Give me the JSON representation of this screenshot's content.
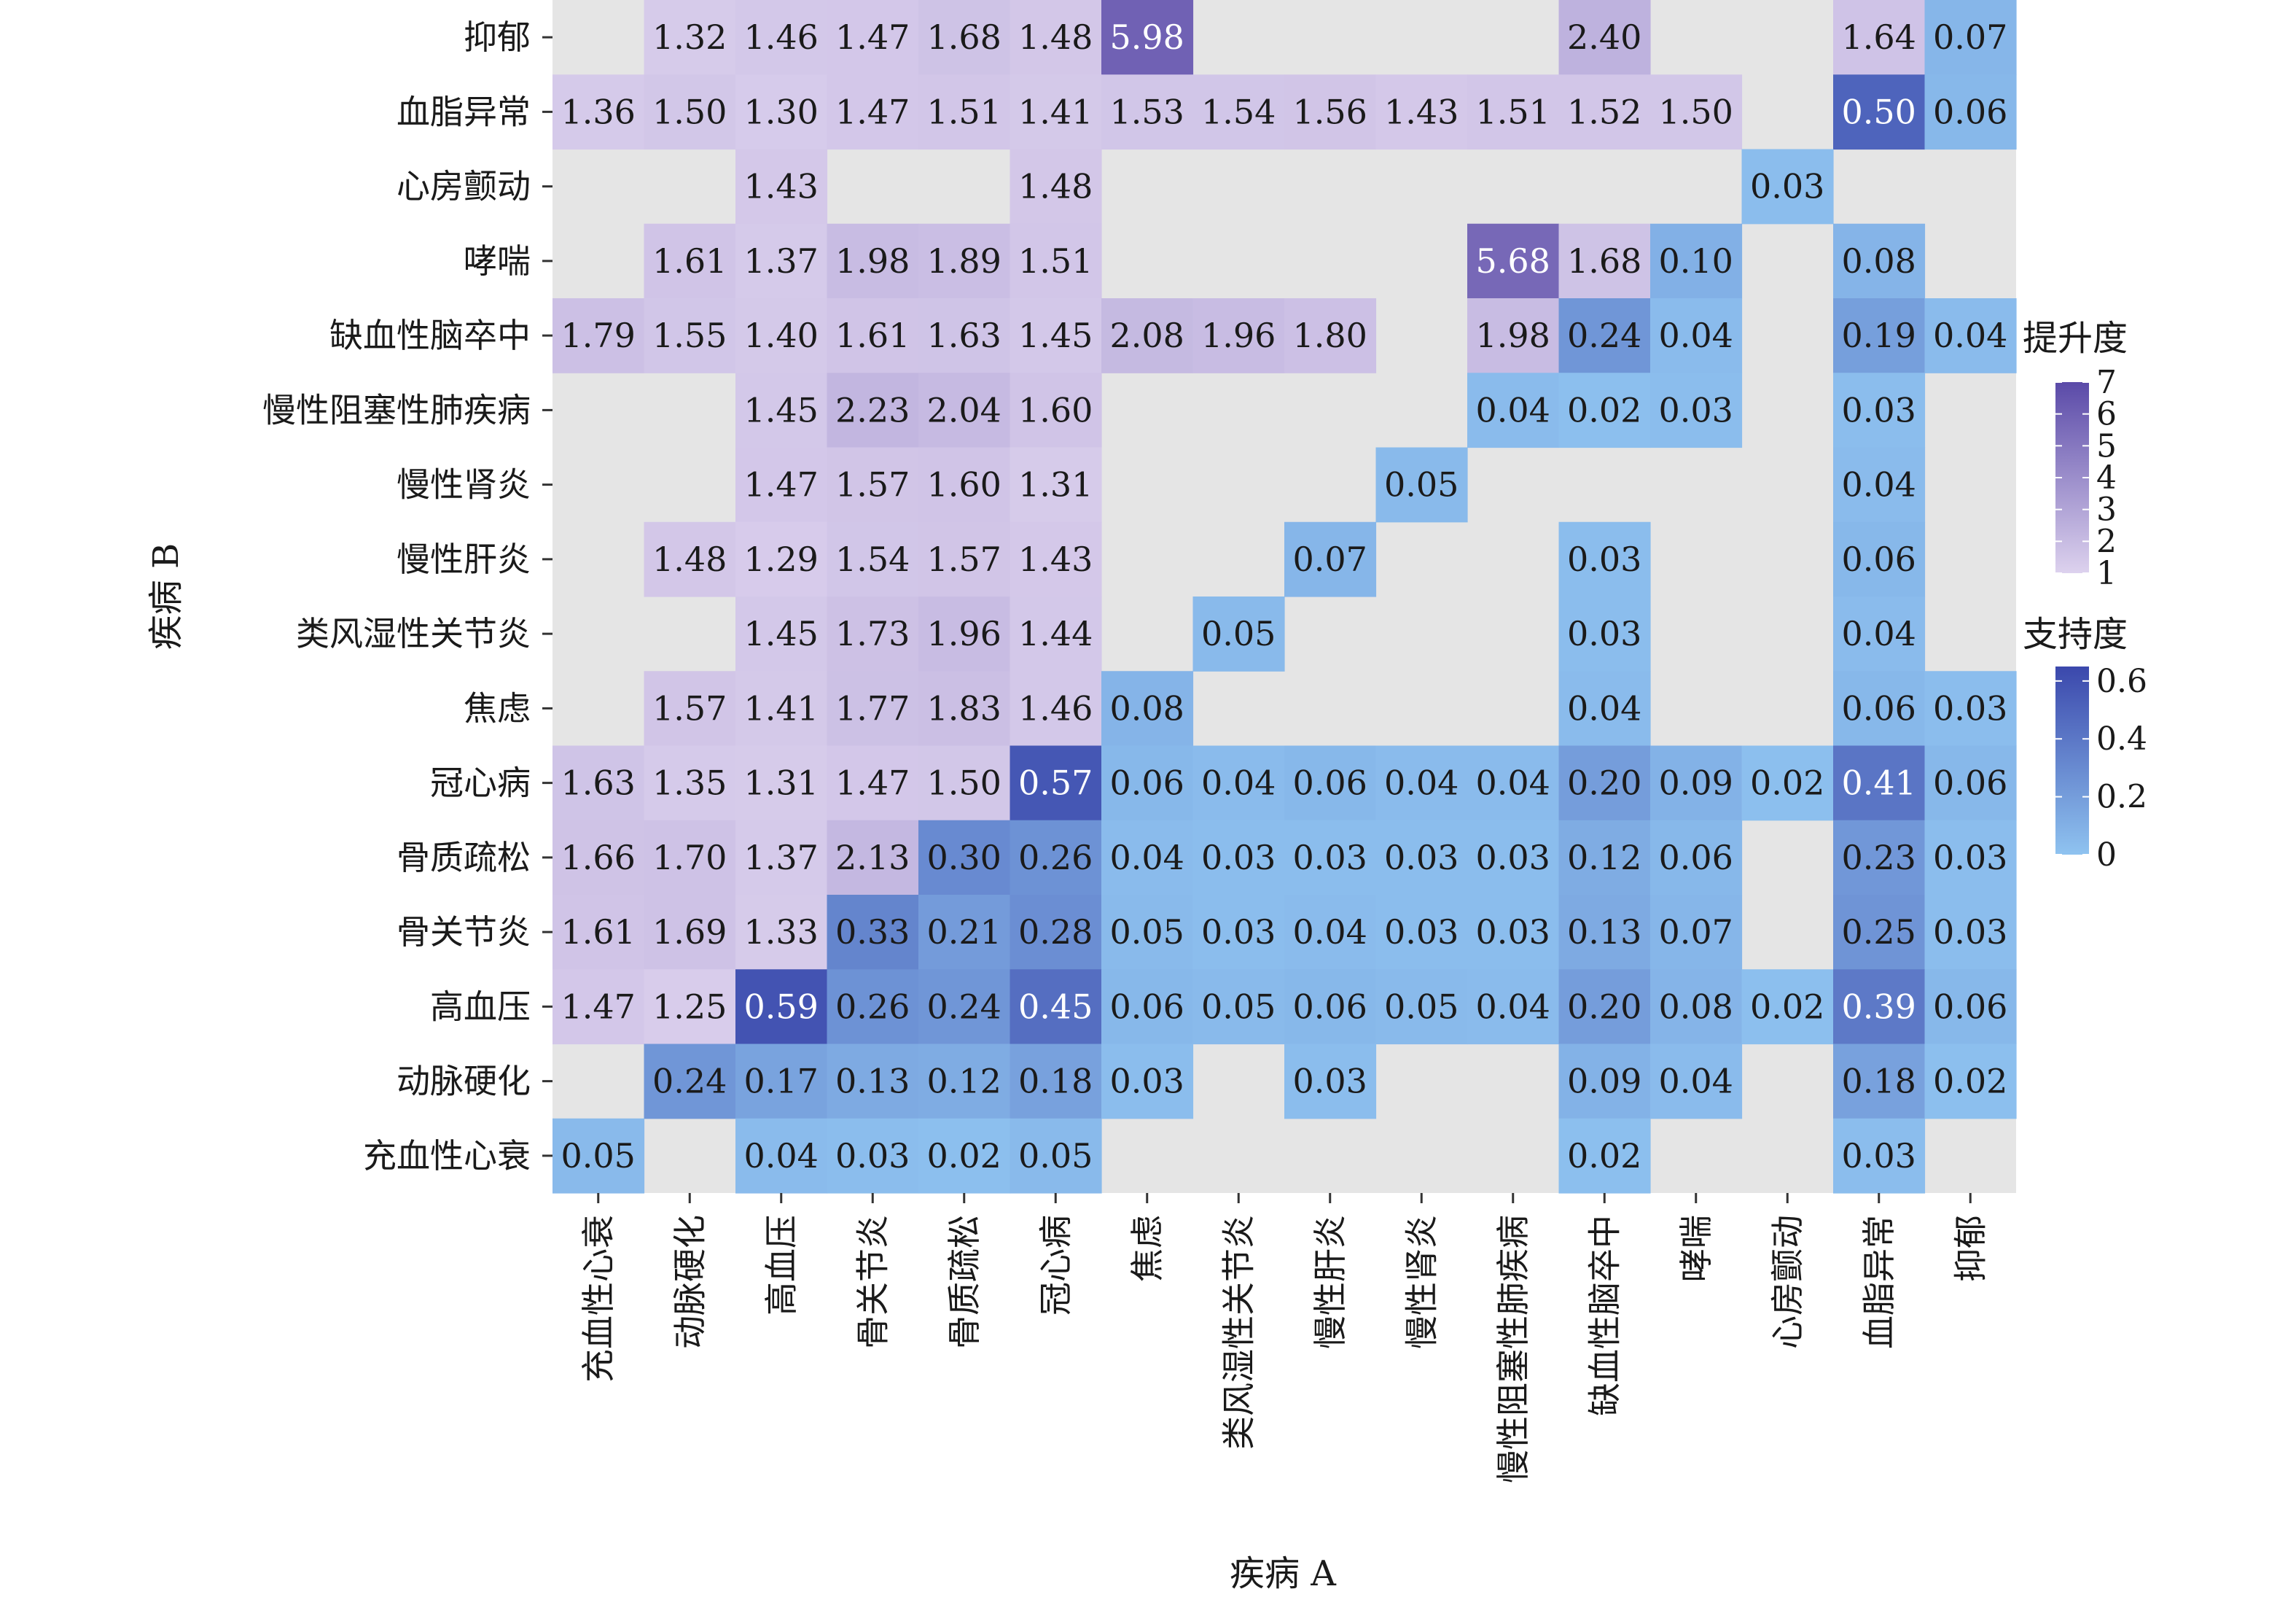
{
  "chart_data": {
    "type": "heatmap",
    "xlabel": "疾病 A",
    "ylabel": "疾病 B",
    "x_categories": [
      "充血性心衰",
      "动脉硬化",
      "高血压",
      "骨关节炎",
      "骨质疏松",
      "冠心病",
      "焦虑",
      "类风湿性关节炎",
      "慢性肝炎",
      "慢性肾炎",
      "慢性阻塞性肺疾病",
      "缺血性脑卒中",
      "哮喘",
      "心房颤动",
      "血脂异常",
      "抑郁"
    ],
    "y_categories": [
      "抑郁",
      "血脂异常",
      "心房颤动",
      "哮喘",
      "缺血性脑卒中",
      "慢性阻塞性肺疾病",
      "慢性肾炎",
      "慢性肝炎",
      "类风湿性关节炎",
      "焦虑",
      "冠心病",
      "骨质疏松",
      "骨关节炎",
      "高血压",
      "动脉硬化",
      "充血性心衰"
    ],
    "cells": [
      {
        "y": "抑郁",
        "x": "动脉硬化",
        "metric": "lift",
        "value": 1.32
      },
      {
        "y": "抑郁",
        "x": "高血压",
        "metric": "lift",
        "value": 1.46
      },
      {
        "y": "抑郁",
        "x": "骨关节炎",
        "metric": "lift",
        "value": 1.47
      },
      {
        "y": "抑郁",
        "x": "骨质疏松",
        "metric": "lift",
        "value": 1.68
      },
      {
        "y": "抑郁",
        "x": "冠心病",
        "metric": "lift",
        "value": 1.48
      },
      {
        "y": "抑郁",
        "x": "焦虑",
        "metric": "lift",
        "value": 5.98
      },
      {
        "y": "抑郁",
        "x": "缺血性脑卒中",
        "metric": "lift",
        "value": 2.4
      },
      {
        "y": "抑郁",
        "x": "血脂异常",
        "metric": "lift",
        "value": 1.64
      },
      {
        "y": "抑郁",
        "x": "抑郁",
        "metric": "support",
        "value": 0.07
      },
      {
        "y": "血脂异常",
        "x": "充血性心衰",
        "metric": "lift",
        "value": 1.36
      },
      {
        "y": "血脂异常",
        "x": "动脉硬化",
        "metric": "lift",
        "value": 1.5
      },
      {
        "y": "血脂异常",
        "x": "高血压",
        "metric": "lift",
        "value": 1.3
      },
      {
        "y": "血脂异常",
        "x": "骨关节炎",
        "metric": "lift",
        "value": 1.47
      },
      {
        "y": "血脂异常",
        "x": "骨质疏松",
        "metric": "lift",
        "value": 1.51
      },
      {
        "y": "血脂异常",
        "x": "冠心病",
        "metric": "lift",
        "value": 1.41
      },
      {
        "y": "血脂异常",
        "x": "焦虑",
        "metric": "lift",
        "value": 1.53
      },
      {
        "y": "血脂异常",
        "x": "类风湿性关节炎",
        "metric": "lift",
        "value": 1.54
      },
      {
        "y": "血脂异常",
        "x": "慢性肝炎",
        "metric": "lift",
        "value": 1.56
      },
      {
        "y": "血脂异常",
        "x": "慢性肾炎",
        "metric": "lift",
        "value": 1.43
      },
      {
        "y": "血脂异常",
        "x": "慢性阻塞性肺疾病",
        "metric": "lift",
        "value": 1.51
      },
      {
        "y": "血脂异常",
        "x": "缺血性脑卒中",
        "metric": "lift",
        "value": 1.52
      },
      {
        "y": "血脂异常",
        "x": "哮喘",
        "metric": "lift",
        "value": 1.5
      },
      {
        "y": "血脂异常",
        "x": "血脂异常",
        "metric": "support",
        "value": 0.5
      },
      {
        "y": "血脂异常",
        "x": "抑郁",
        "metric": "support",
        "value": 0.06
      },
      {
        "y": "心房颤动",
        "x": "高血压",
        "metric": "lift",
        "value": 1.43
      },
      {
        "y": "心房颤动",
        "x": "冠心病",
        "metric": "lift",
        "value": 1.48
      },
      {
        "y": "心房颤动",
        "x": "心房颤动",
        "metric": "support",
        "value": 0.03
      },
      {
        "y": "哮喘",
        "x": "动脉硬化",
        "metric": "lift",
        "value": 1.61
      },
      {
        "y": "哮喘",
        "x": "高血压",
        "metric": "lift",
        "value": 1.37
      },
      {
        "y": "哮喘",
        "x": "骨关节炎",
        "metric": "lift",
        "value": 1.98
      },
      {
        "y": "哮喘",
        "x": "骨质疏松",
        "metric": "lift",
        "value": 1.89
      },
      {
        "y": "哮喘",
        "x": "冠心病",
        "metric": "lift",
        "value": 1.51
      },
      {
        "y": "哮喘",
        "x": "慢性阻塞性肺疾病",
        "metric": "lift",
        "value": 5.68
      },
      {
        "y": "哮喘",
        "x": "缺血性脑卒中",
        "metric": "lift",
        "value": 1.68
      },
      {
        "y": "哮喘",
        "x": "哮喘",
        "metric": "support",
        "value": 0.1
      },
      {
        "y": "哮喘",
        "x": "血脂异常",
        "metric": "support",
        "value": 0.08
      },
      {
        "y": "缺血性脑卒中",
        "x": "充血性心衰",
        "metric": "lift",
        "value": 1.79
      },
      {
        "y": "缺血性脑卒中",
        "x": "动脉硬化",
        "metric": "lift",
        "value": 1.55
      },
      {
        "y": "缺血性脑卒中",
        "x": "高血压",
        "metric": "lift",
        "value": 1.4
      },
      {
        "y": "缺血性脑卒中",
        "x": "骨关节炎",
        "metric": "lift",
        "value": 1.61
      },
      {
        "y": "缺血性脑卒中",
        "x": "骨质疏松",
        "metric": "lift",
        "value": 1.63
      },
      {
        "y": "缺血性脑卒中",
        "x": "冠心病",
        "metric": "lift",
        "value": 1.45
      },
      {
        "y": "缺血性脑卒中",
        "x": "焦虑",
        "metric": "lift",
        "value": 2.08
      },
      {
        "y": "缺血性脑卒中",
        "x": "类风湿性关节炎",
        "metric": "lift",
        "value": 1.96
      },
      {
        "y": "缺血性脑卒中",
        "x": "慢性肝炎",
        "metric": "lift",
        "value": 1.8
      },
      {
        "y": "缺血性脑卒中",
        "x": "慢性阻塞性肺疾病",
        "metric": "lift",
        "value": 1.98
      },
      {
        "y": "缺血性脑卒中",
        "x": "缺血性脑卒中",
        "metric": "support",
        "value": 0.24
      },
      {
        "y": "缺血性脑卒中",
        "x": "哮喘",
        "metric": "support",
        "value": 0.04
      },
      {
        "y": "缺血性脑卒中",
        "x": "血脂异常",
        "metric": "support",
        "value": 0.19
      },
      {
        "y": "缺血性脑卒中",
        "x": "抑郁",
        "metric": "support",
        "value": 0.04
      },
      {
        "y": "慢性阻塞性肺疾病",
        "x": "高血压",
        "metric": "lift",
        "value": 1.45
      },
      {
        "y": "慢性阻塞性肺疾病",
        "x": "骨关节炎",
        "metric": "lift",
        "value": 2.23
      },
      {
        "y": "慢性阻塞性肺疾病",
        "x": "骨质疏松",
        "metric": "lift",
        "value": 2.04
      },
      {
        "y": "慢性阻塞性肺疾病",
        "x": "冠心病",
        "metric": "lift",
        "value": 1.6
      },
      {
        "y": "慢性阻塞性肺疾病",
        "x": "慢性阻塞性肺疾病",
        "metric": "support",
        "value": 0.04
      },
      {
        "y": "慢性阻塞性肺疾病",
        "x": "缺血性脑卒中",
        "metric": "support",
        "value": 0.02
      },
      {
        "y": "慢性阻塞性肺疾病",
        "x": "哮喘",
        "metric": "support",
        "value": 0.03
      },
      {
        "y": "慢性阻塞性肺疾病",
        "x": "血脂异常",
        "metric": "support",
        "value": 0.03
      },
      {
        "y": "慢性肾炎",
        "x": "高血压",
        "metric": "lift",
        "value": 1.47
      },
      {
        "y": "慢性肾炎",
        "x": "骨关节炎",
        "metric": "lift",
        "value": 1.57
      },
      {
        "y": "慢性肾炎",
        "x": "骨质疏松",
        "metric": "lift",
        "value": 1.6
      },
      {
        "y": "慢性肾炎",
        "x": "冠心病",
        "metric": "lift",
        "value": 1.31
      },
      {
        "y": "慢性肾炎",
        "x": "慢性肾炎",
        "metric": "support",
        "value": 0.05
      },
      {
        "y": "慢性肾炎",
        "x": "血脂异常",
        "metric": "support",
        "value": 0.04
      },
      {
        "y": "慢性肝炎",
        "x": "动脉硬化",
        "metric": "lift",
        "value": 1.48
      },
      {
        "y": "慢性肝炎",
        "x": "高血压",
        "metric": "lift",
        "value": 1.29
      },
      {
        "y": "慢性肝炎",
        "x": "骨关节炎",
        "metric": "lift",
        "value": 1.54
      },
      {
        "y": "慢性肝炎",
        "x": "骨质疏松",
        "metric": "lift",
        "value": 1.57
      },
      {
        "y": "慢性肝炎",
        "x": "冠心病",
        "metric": "lift",
        "value": 1.43
      },
      {
        "y": "慢性肝炎",
        "x": "慢性肝炎",
        "metric": "support",
        "value": 0.07
      },
      {
        "y": "慢性肝炎",
        "x": "缺血性脑卒中",
        "metric": "support",
        "value": 0.03
      },
      {
        "y": "慢性肝炎",
        "x": "血脂异常",
        "metric": "support",
        "value": 0.06
      },
      {
        "y": "类风湿性关节炎",
        "x": "高血压",
        "metric": "lift",
        "value": 1.45
      },
      {
        "y": "类风湿性关节炎",
        "x": "骨关节炎",
        "metric": "lift",
        "value": 1.73
      },
      {
        "y": "类风湿性关节炎",
        "x": "骨质疏松",
        "metric": "lift",
        "value": 1.96
      },
      {
        "y": "类风湿性关节炎",
        "x": "冠心病",
        "metric": "lift",
        "value": 1.44
      },
      {
        "y": "类风湿性关节炎",
        "x": "类风湿性关节炎",
        "metric": "support",
        "value": 0.05
      },
      {
        "y": "类风湿性关节炎",
        "x": "缺血性脑卒中",
        "metric": "support",
        "value": 0.03
      },
      {
        "y": "类风湿性关节炎",
        "x": "血脂异常",
        "metric": "support",
        "value": 0.04
      },
      {
        "y": "焦虑",
        "x": "动脉硬化",
        "metric": "lift",
        "value": 1.57
      },
      {
        "y": "焦虑",
        "x": "高血压",
        "metric": "lift",
        "value": 1.41
      },
      {
        "y": "焦虑",
        "x": "骨关节炎",
        "metric": "lift",
        "value": 1.77
      },
      {
        "y": "焦虑",
        "x": "骨质疏松",
        "metric": "lift",
        "value": 1.83
      },
      {
        "y": "焦虑",
        "x": "冠心病",
        "metric": "lift",
        "value": 1.46
      },
      {
        "y": "焦虑",
        "x": "焦虑",
        "metric": "support",
        "value": 0.08
      },
      {
        "y": "焦虑",
        "x": "缺血性脑卒中",
        "metric": "support",
        "value": 0.04
      },
      {
        "y": "焦虑",
        "x": "血脂异常",
        "metric": "support",
        "value": 0.06
      },
      {
        "y": "焦虑",
        "x": "抑郁",
        "metric": "support",
        "value": 0.03
      },
      {
        "y": "冠心病",
        "x": "充血性心衰",
        "metric": "lift",
        "value": 1.63
      },
      {
        "y": "冠心病",
        "x": "动脉硬化",
        "metric": "lift",
        "value": 1.35
      },
      {
        "y": "冠心病",
        "x": "高血压",
        "metric": "lift",
        "value": 1.31
      },
      {
        "y": "冠心病",
        "x": "骨关节炎",
        "metric": "lift",
        "value": 1.47
      },
      {
        "y": "冠心病",
        "x": "骨质疏松",
        "metric": "lift",
        "value": 1.5
      },
      {
        "y": "冠心病",
        "x": "冠心病",
        "metric": "support",
        "value": 0.57
      },
      {
        "y": "冠心病",
        "x": "焦虑",
        "metric": "support",
        "value": 0.06
      },
      {
        "y": "冠心病",
        "x": "类风湿性关节炎",
        "metric": "support",
        "value": 0.04
      },
      {
        "y": "冠心病",
        "x": "慢性肝炎",
        "metric": "support",
        "value": 0.06
      },
      {
        "y": "冠心病",
        "x": "慢性肾炎",
        "metric": "support",
        "value": 0.04
      },
      {
        "y": "冠心病",
        "x": "慢性阻塞性肺疾病",
        "metric": "support",
        "value": 0.04
      },
      {
        "y": "冠心病",
        "x": "缺血性脑卒中",
        "metric": "support",
        "value": 0.2
      },
      {
        "y": "冠心病",
        "x": "哮喘",
        "metric": "support",
        "value": 0.09
      },
      {
        "y": "冠心病",
        "x": "心房颤动",
        "metric": "support",
        "value": 0.02
      },
      {
        "y": "冠心病",
        "x": "血脂异常",
        "metric": "support",
        "value": 0.41
      },
      {
        "y": "冠心病",
        "x": "抑郁",
        "metric": "support",
        "value": 0.06
      },
      {
        "y": "骨质疏松",
        "x": "充血性心衰",
        "metric": "lift",
        "value": 1.66
      },
      {
        "y": "骨质疏松",
        "x": "动脉硬化",
        "metric": "lift",
        "value": 1.7
      },
      {
        "y": "骨质疏松",
        "x": "高血压",
        "metric": "lift",
        "value": 1.37
      },
      {
        "y": "骨质疏松",
        "x": "骨关节炎",
        "metric": "lift",
        "value": 2.13
      },
      {
        "y": "骨质疏松",
        "x": "骨质疏松",
        "metric": "support",
        "value": 0.3
      },
      {
        "y": "骨质疏松",
        "x": "冠心病",
        "metric": "support",
        "value": 0.26
      },
      {
        "y": "骨质疏松",
        "x": "焦虑",
        "metric": "support",
        "value": 0.04
      },
      {
        "y": "骨质疏松",
        "x": "类风湿性关节炎",
        "metric": "support",
        "value": 0.03
      },
      {
        "y": "骨质疏松",
        "x": "慢性肝炎",
        "metric": "support",
        "value": 0.03
      },
      {
        "y": "骨质疏松",
        "x": "慢性肾炎",
        "metric": "support",
        "value": 0.03
      },
      {
        "y": "骨质疏松",
        "x": "慢性阻塞性肺疾病",
        "metric": "support",
        "value": 0.03
      },
      {
        "y": "骨质疏松",
        "x": "缺血性脑卒中",
        "metric": "support",
        "value": 0.12
      },
      {
        "y": "骨质疏松",
        "x": "哮喘",
        "metric": "support",
        "value": 0.06
      },
      {
        "y": "骨质疏松",
        "x": "血脂异常",
        "metric": "support",
        "value": 0.23
      },
      {
        "y": "骨质疏松",
        "x": "抑郁",
        "metric": "support",
        "value": 0.03
      },
      {
        "y": "骨关节炎",
        "x": "充血性心衰",
        "metric": "lift",
        "value": 1.61
      },
      {
        "y": "骨关节炎",
        "x": "动脉硬化",
        "metric": "lift",
        "value": 1.69
      },
      {
        "y": "骨关节炎",
        "x": "高血压",
        "metric": "lift",
        "value": 1.33
      },
      {
        "y": "骨关节炎",
        "x": "骨关节炎",
        "metric": "support",
        "value": 0.33
      },
      {
        "y": "骨关节炎",
        "x": "骨质疏松",
        "metric": "support",
        "value": 0.21
      },
      {
        "y": "骨关节炎",
        "x": "冠心病",
        "metric": "support",
        "value": 0.28
      },
      {
        "y": "骨关节炎",
        "x": "焦虑",
        "metric": "support",
        "value": 0.05
      },
      {
        "y": "骨关节炎",
        "x": "类风湿性关节炎",
        "metric": "support",
        "value": 0.03
      },
      {
        "y": "骨关节炎",
        "x": "慢性肝炎",
        "metric": "support",
        "value": 0.04
      },
      {
        "y": "骨关节炎",
        "x": "慢性肾炎",
        "metric": "support",
        "value": 0.03
      },
      {
        "y": "骨关节炎",
        "x": "慢性阻塞性肺疾病",
        "metric": "support",
        "value": 0.03
      },
      {
        "y": "骨关节炎",
        "x": "缺血性脑卒中",
        "metric": "support",
        "value": 0.13
      },
      {
        "y": "骨关节炎",
        "x": "哮喘",
        "metric": "support",
        "value": 0.07
      },
      {
        "y": "骨关节炎",
        "x": "血脂异常",
        "metric": "support",
        "value": 0.25
      },
      {
        "y": "骨关节炎",
        "x": "抑郁",
        "metric": "support",
        "value": 0.03
      },
      {
        "y": "高血压",
        "x": "充血性心衰",
        "metric": "lift",
        "value": 1.47
      },
      {
        "y": "高血压",
        "x": "动脉硬化",
        "metric": "lift",
        "value": 1.25
      },
      {
        "y": "高血压",
        "x": "高血压",
        "metric": "support",
        "value": 0.59
      },
      {
        "y": "高血压",
        "x": "骨关节炎",
        "metric": "support",
        "value": 0.26
      },
      {
        "y": "高血压",
        "x": "骨质疏松",
        "metric": "support",
        "value": 0.24
      },
      {
        "y": "高血压",
        "x": "冠心病",
        "metric": "support",
        "value": 0.45
      },
      {
        "y": "高血压",
        "x": "焦虑",
        "metric": "support",
        "value": 0.06
      },
      {
        "y": "高血压",
        "x": "类风湿性关节炎",
        "metric": "support",
        "value": 0.05
      },
      {
        "y": "高血压",
        "x": "慢性肝炎",
        "metric": "support",
        "value": 0.06
      },
      {
        "y": "高血压",
        "x": "慢性肾炎",
        "metric": "support",
        "value": 0.05
      },
      {
        "y": "高血压",
        "x": "慢性阻塞性肺疾病",
        "metric": "support",
        "value": 0.04
      },
      {
        "y": "高血压",
        "x": "缺血性脑卒中",
        "metric": "support",
        "value": 0.2
      },
      {
        "y": "高血压",
        "x": "哮喘",
        "metric": "support",
        "value": 0.08
      },
      {
        "y": "高血压",
        "x": "心房颤动",
        "metric": "support",
        "value": 0.02
      },
      {
        "y": "高血压",
        "x": "血脂异常",
        "metric": "support",
        "value": 0.39
      },
      {
        "y": "高血压",
        "x": "抑郁",
        "metric": "support",
        "value": 0.06
      },
      {
        "y": "动脉硬化",
        "x": "动脉硬化",
        "metric": "support",
        "value": 0.24
      },
      {
        "y": "动脉硬化",
        "x": "高血压",
        "metric": "support",
        "value": 0.17
      },
      {
        "y": "动脉硬化",
        "x": "骨关节炎",
        "metric": "support",
        "value": 0.13
      },
      {
        "y": "动脉硬化",
        "x": "骨质疏松",
        "metric": "support",
        "value": 0.12
      },
      {
        "y": "动脉硬化",
        "x": "冠心病",
        "metric": "support",
        "value": 0.18
      },
      {
        "y": "动脉硬化",
        "x": "焦虑",
        "metric": "support",
        "value": 0.03
      },
      {
        "y": "动脉硬化",
        "x": "慢性肝炎",
        "metric": "support",
        "value": 0.03
      },
      {
        "y": "动脉硬化",
        "x": "缺血性脑卒中",
        "metric": "support",
        "value": 0.09
      },
      {
        "y": "动脉硬化",
        "x": "哮喘",
        "metric": "support",
        "value": 0.04
      },
      {
        "y": "动脉硬化",
        "x": "血脂异常",
        "metric": "support",
        "value": 0.18
      },
      {
        "y": "动脉硬化",
        "x": "抑郁",
        "metric": "support",
        "value": 0.02
      },
      {
        "y": "充血性心衰",
        "x": "充血性心衰",
        "metric": "support",
        "value": 0.05
      },
      {
        "y": "充血性心衰",
        "x": "高血压",
        "metric": "support",
        "value": 0.04
      },
      {
        "y": "充血性心衰",
        "x": "骨关节炎",
        "metric": "support",
        "value": 0.03
      },
      {
        "y": "充血性心衰",
        "x": "骨质疏松",
        "metric": "support",
        "value": 0.02
      },
      {
        "y": "充血性心衰",
        "x": "冠心病",
        "metric": "support",
        "value": 0.05
      },
      {
        "y": "充血性心衰",
        "x": "缺血性脑卒中",
        "metric": "support",
        "value": 0.02
      },
      {
        "y": "充血性心衰",
        "x": "血脂异常",
        "metric": "support",
        "value": 0.03
      }
    ],
    "legends": [
      {
        "metric": "lift",
        "title": "提升度",
        "range": [
          1,
          7
        ],
        "ticks": [
          "1",
          "2",
          "3",
          "4",
          "5",
          "6",
          "7"
        ],
        "colors": [
          "#ddd2ee",
          "#5a4aa8"
        ]
      },
      {
        "metric": "support",
        "title": "支持度",
        "range": [
          0,
          0.65
        ],
        "ticks": [
          "0",
          "0.2",
          "0.4",
          "0.6"
        ],
        "colors": [
          "#8fc3f0",
          "#3b48ac"
        ]
      }
    ],
    "colors": {
      "panel_background": "#e5e5e5",
      "text_dark": "#1a1a1a",
      "text_light": "#ffffff"
    },
    "grid": false
  }
}
